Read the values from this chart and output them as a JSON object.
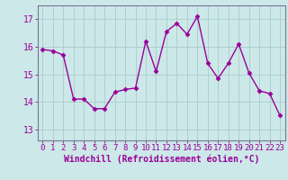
{
  "x": [
    0,
    1,
    2,
    3,
    4,
    5,
    6,
    7,
    8,
    9,
    10,
    11,
    12,
    13,
    14,
    15,
    16,
    17,
    18,
    19,
    20,
    21,
    22,
    23
  ],
  "y": [
    15.9,
    15.85,
    15.7,
    14.1,
    14.1,
    13.75,
    13.75,
    14.35,
    14.45,
    14.5,
    16.2,
    15.1,
    16.55,
    16.85,
    16.45,
    17.1,
    15.4,
    14.85,
    15.4,
    16.1,
    15.05,
    14.4,
    14.3,
    13.5
  ],
  "line_color": "#990099",
  "marker": "D",
  "marker_size": 2.5,
  "bg_color": "#cce8e8",
  "grid_color": "#aacccc",
  "xlabel": "Windchill (Refroidissement éolien,°C)",
  "xlabel_color": "#990099",
  "tick_color": "#990099",
  "yticks": [
    13,
    14,
    15,
    16,
    17
  ],
  "ylim": [
    12.6,
    17.5
  ],
  "xlim": [
    -0.5,
    23.5
  ],
  "xticks": [
    0,
    1,
    2,
    3,
    4,
    5,
    6,
    7,
    8,
    9,
    10,
    11,
    12,
    13,
    14,
    15,
    16,
    17,
    18,
    19,
    20,
    21,
    22,
    23
  ],
  "spine_color": "#777799",
  "tick_fontsize": 6.5,
  "xlabel_fontsize": 7,
  "line_width": 1.0
}
